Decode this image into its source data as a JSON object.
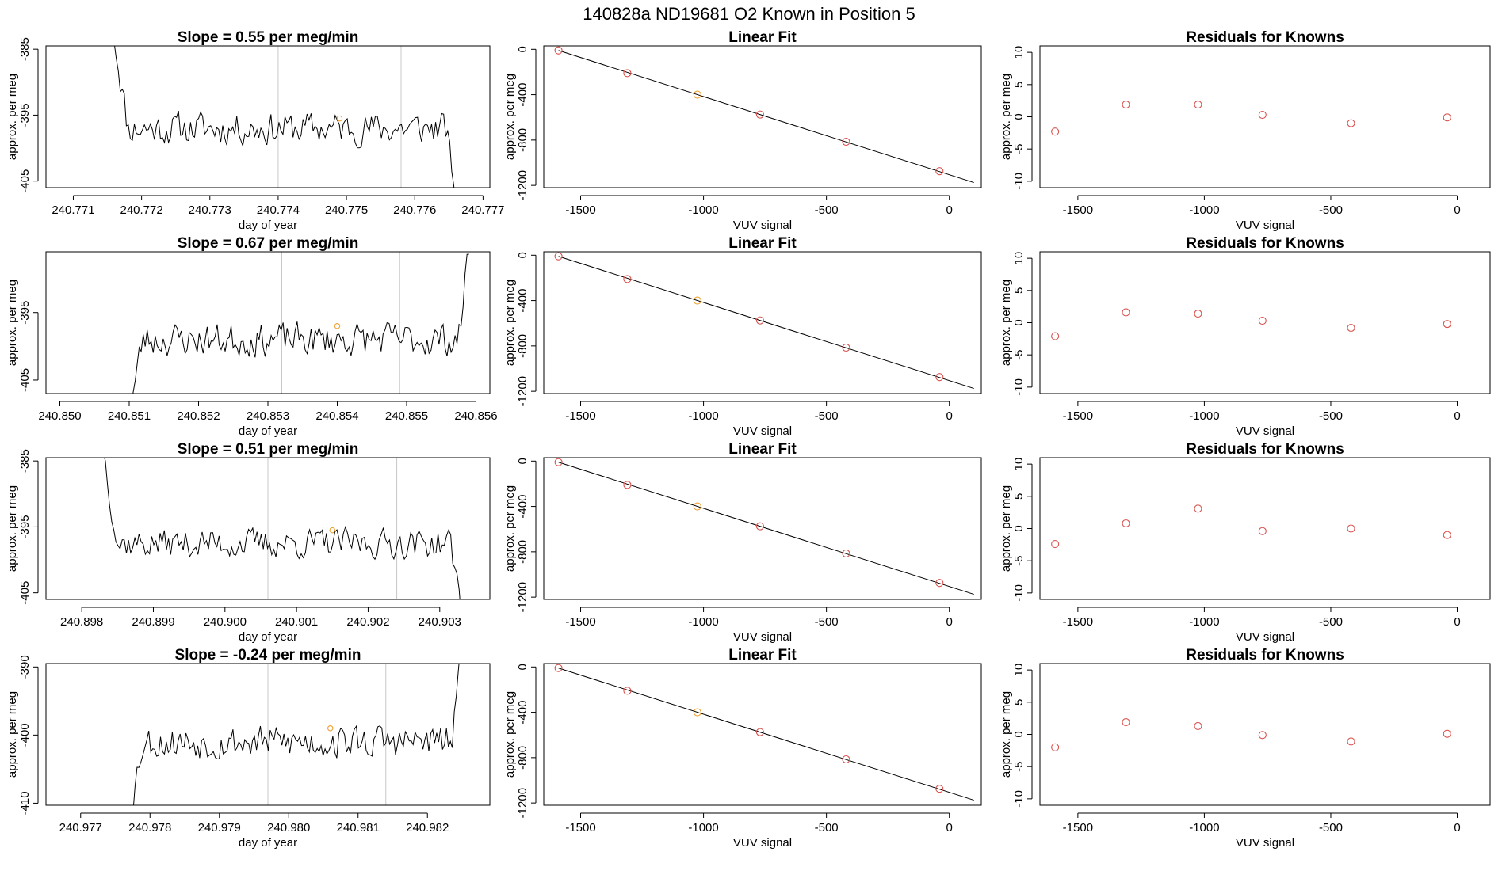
{
  "figure": {
    "title": "140828a      ND19681    O2 Known in Position  5"
  },
  "colors": {
    "known": "#d9534f",
    "sample": "#f0a030",
    "trace": "#000000",
    "marker_lines": "#c8c8c8"
  },
  "chart_data": [
    {
      "type": "line",
      "panel": "timeseries",
      "row": 1,
      "title": "Slope =  0.55  per meg/min",
      "xlabel": "day of year",
      "ylabel": "approx. per meg",
      "xlim": [
        240.7706,
        240.7771
      ],
      "ylim": [
        -406,
        -384.5
      ],
      "xticks": [
        240.771,
        240.772,
        240.773,
        240.774,
        240.775,
        240.776,
        240.777
      ],
      "xtick_labels": [
        "240.771",
        "240.772",
        "240.773",
        "240.774",
        "240.775",
        "240.776",
        "240.777"
      ],
      "yticks": [
        -385,
        -395,
        -405
      ],
      "ytick_labels": [
        "-385",
        "-395",
        "-405"
      ],
      "vlines": [
        240.774,
        240.7758
      ],
      "trace": {
        "x_start": 240.7716,
        "x_end": 240.7766,
        "baseline": -397,
        "trend_per_day": 0,
        "start_value": -383,
        "end_value": -407,
        "noise": 2.2,
        "seed": 11
      },
      "sample_point": {
        "x": 240.7749,
        "y": -395.5
      }
    },
    {
      "type": "line",
      "panel": "fit",
      "row": 1,
      "title": "Linear Fit",
      "xlabel": "VUV signal",
      "ylabel": "approx. per meg",
      "xlim": [
        -1650,
        130
      ],
      "ylim": [
        -1220,
        30
      ],
      "xticks": [
        -1500,
        -1000,
        -500,
        0
      ],
      "xtick_labels": [
        "-1500",
        "-1000",
        "-500",
        "0"
      ],
      "yticks": [
        0,
        -400,
        -800,
        -1200
      ],
      "ytick_labels": [
        "0",
        "-400",
        "-800",
        "-1200"
      ],
      "line": {
        "x": [
          -1590,
          100
        ],
        "y": [
          -10,
          -1175
        ]
      },
      "points": [
        {
          "x": -1590,
          "y": -10
        },
        {
          "x": -1310,
          "y": -210
        },
        {
          "x": -1025,
          "y": -400
        },
        {
          "x": -770,
          "y": -575
        },
        {
          "x": -420,
          "y": -815
        },
        {
          "x": -40,
          "y": -1075
        }
      ],
      "highlight_index": 2
    },
    {
      "type": "scatter",
      "panel": "residuals",
      "row": 1,
      "title": "Residuals for Knowns",
      "xlabel": "VUV signal",
      "ylabel": "approx. per meg",
      "xlim": [
        -1650,
        130
      ],
      "ylim": [
        -11,
        11
      ],
      "xticks": [
        -1500,
        -1000,
        -500,
        0
      ],
      "xtick_labels": [
        "-1500",
        "-1000",
        "-500",
        "0"
      ],
      "yticks": [
        10,
        5,
        0,
        -5,
        -10
      ],
      "ytick_labels": [
        "10",
        "5",
        "0",
        "-5",
        "-10"
      ],
      "points": [
        {
          "x": -1590,
          "y": -2.3
        },
        {
          "x": -1310,
          "y": 1.9
        },
        {
          "x": -1025,
          "y": 1.9
        },
        {
          "x": -770,
          "y": 0.3
        },
        {
          "x": -420,
          "y": -1.0
        },
        {
          "x": -40,
          "y": -0.1
        }
      ]
    },
    {
      "type": "line",
      "panel": "timeseries",
      "row": 2,
      "title": "Slope =  0.67  per meg/min",
      "xlabel": "day of year",
      "ylabel": "approx. per meg",
      "xlim": [
        240.8498,
        240.8562
      ],
      "ylim": [
        -407,
        -386
      ],
      "xticks": [
        240.85,
        240.851,
        240.852,
        240.853,
        240.854,
        240.855,
        240.856
      ],
      "xtick_labels": [
        "240.850",
        "240.851",
        "240.852",
        "240.853",
        "240.854",
        "240.855",
        "240.856"
      ],
      "yticks": [
        -395,
        -405
      ],
      "ytick_labels": [
        "-395",
        "-405"
      ],
      "vlines": [
        240.8532,
        240.8549
      ],
      "trace": {
        "x_start": 240.851,
        "x_end": 240.8559,
        "baseline": -399,
        "trend_per_day": 1600,
        "start_value": -410,
        "end_value": -385,
        "noise": 2.2,
        "seed": 23
      },
      "sample_point": {
        "x": 240.854,
        "y": -397
      }
    },
    {
      "type": "line",
      "panel": "fit",
      "row": 2,
      "title": "Linear Fit",
      "xlabel": "VUV signal",
      "ylabel": "approx. per meg",
      "xlim": [
        -1650,
        130
      ],
      "ylim": [
        -1220,
        30
      ],
      "xticks": [
        -1500,
        -1000,
        -500,
        0
      ],
      "xtick_labels": [
        "-1500",
        "-1000",
        "-500",
        "0"
      ],
      "yticks": [
        0,
        -400,
        -800,
        -1200
      ],
      "ytick_labels": [
        "0",
        "-400",
        "-800",
        "-1200"
      ],
      "line": {
        "x": [
          -1590,
          100
        ],
        "y": [
          -10,
          -1175
        ]
      },
      "points": [
        {
          "x": -1590,
          "y": -10
        },
        {
          "x": -1310,
          "y": -210
        },
        {
          "x": -1025,
          "y": -400
        },
        {
          "x": -770,
          "y": -575
        },
        {
          "x": -420,
          "y": -815
        },
        {
          "x": -40,
          "y": -1075
        }
      ],
      "highlight_index": 2
    },
    {
      "type": "scatter",
      "panel": "residuals",
      "row": 2,
      "title": "Residuals for Knowns",
      "xlabel": "VUV signal",
      "ylabel": "approx. per meg",
      "xlim": [
        -1650,
        130
      ],
      "ylim": [
        -11,
        11
      ],
      "xticks": [
        -1500,
        -1000,
        -500,
        0
      ],
      "xtick_labels": [
        "-1500",
        "-1000",
        "-500",
        "0"
      ],
      "yticks": [
        10,
        5,
        0,
        -5,
        -10
      ],
      "ytick_labels": [
        "10",
        "5",
        "0",
        "-5",
        "-10"
      ],
      "points": [
        {
          "x": -1590,
          "y": -2.1
        },
        {
          "x": -1310,
          "y": 1.6
        },
        {
          "x": -1025,
          "y": 1.4
        },
        {
          "x": -770,
          "y": 0.3
        },
        {
          "x": -420,
          "y": -0.8
        },
        {
          "x": -40,
          "y": -0.2
        }
      ]
    },
    {
      "type": "line",
      "panel": "timeseries",
      "row": 3,
      "title": "Slope =  0.51  per meg/min",
      "xlabel": "day of year",
      "ylabel": "approx. per meg",
      "xlim": [
        240.8975,
        240.9037
      ],
      "ylim": [
        -406,
        -384.5
      ],
      "xticks": [
        240.898,
        240.899,
        240.9,
        240.901,
        240.902,
        240.903
      ],
      "xtick_labels": [
        "240.898",
        "240.899",
        "240.900",
        "240.901",
        "240.902",
        "240.903"
      ],
      "yticks": [
        -385,
        -395,
        -405
      ],
      "ytick_labels": [
        "-385",
        "-395",
        "-405"
      ],
      "vlines": [
        240.9006,
        240.9024
      ],
      "trace": {
        "x_start": 240.8983,
        "x_end": 240.9033,
        "baseline": -397.5,
        "trend_per_day": 0,
        "start_value": -383,
        "end_value": -407,
        "noise": 2.0,
        "seed": 37
      },
      "sample_point": {
        "x": 240.9015,
        "y": -395.5
      }
    },
    {
      "type": "line",
      "panel": "fit",
      "row": 3,
      "title": "Linear Fit",
      "xlabel": "VUV signal",
      "ylabel": "approx. per meg",
      "xlim": [
        -1650,
        130
      ],
      "ylim": [
        -1220,
        30
      ],
      "xticks": [
        -1500,
        -1000,
        -500,
        0
      ],
      "xtick_labels": [
        "-1500",
        "-1000",
        "-500",
        "0"
      ],
      "yticks": [
        0,
        -400,
        -800,
        -1200
      ],
      "ytick_labels": [
        "0",
        "-400",
        "-800",
        "-1200"
      ],
      "line": {
        "x": [
          -1590,
          100
        ],
        "y": [
          -10,
          -1175
        ]
      },
      "points": [
        {
          "x": -1590,
          "y": -10
        },
        {
          "x": -1310,
          "y": -210
        },
        {
          "x": -1025,
          "y": -400
        },
        {
          "x": -770,
          "y": -575
        },
        {
          "x": -420,
          "y": -815
        },
        {
          "x": -40,
          "y": -1075
        }
      ],
      "highlight_index": 2
    },
    {
      "type": "scatter",
      "panel": "residuals",
      "row": 3,
      "title": "Residuals for Knowns",
      "xlabel": "VUV signal",
      "ylabel": "approx. per meg",
      "xlim": [
        -1650,
        130
      ],
      "ylim": [
        -11,
        11
      ],
      "xticks": [
        -1500,
        -1000,
        -500,
        0
      ],
      "xtick_labels": [
        "-1500",
        "-1000",
        "-500",
        "0"
      ],
      "yticks": [
        10,
        5,
        0,
        -5,
        -10
      ],
      "ytick_labels": [
        "10",
        "5",
        "0",
        "-5",
        "-10"
      ],
      "points": [
        {
          "x": -1590,
          "y": -2.4
        },
        {
          "x": -1310,
          "y": 0.8
        },
        {
          "x": -1025,
          "y": 3.1
        },
        {
          "x": -770,
          "y": -0.4
        },
        {
          "x": -420,
          "y": 0.0
        },
        {
          "x": -40,
          "y": -1.0
        }
      ]
    },
    {
      "type": "line",
      "panel": "timeseries",
      "row": 4,
      "title": "Slope =  -0.24  per meg/min",
      "xlabel": "day of year",
      "ylabel": "approx. per meg",
      "xlim": [
        240.9765,
        240.9829
      ],
      "ylim": [
        -410.3,
        -389.5
      ],
      "xticks": [
        240.977,
        240.978,
        240.979,
        240.98,
        240.981,
        240.982
      ],
      "xtick_labels": [
        "240.977",
        "240.978",
        "240.979",
        "240.980",
        "240.981",
        "240.982"
      ],
      "yticks": [
        -390,
        -400,
        -410
      ],
      "ytick_labels": [
        "-390",
        "-400",
        "-410"
      ],
      "vlines": [
        240.9797,
        240.9814
      ],
      "trace": {
        "x_start": 240.9777,
        "x_end": 240.9825,
        "baseline": -401,
        "trend_per_day": 600,
        "start_value": -412,
        "end_value": -388,
        "noise": 2.2,
        "seed": 53
      },
      "sample_point": {
        "x": 240.9806,
        "y": -399
      }
    },
    {
      "type": "line",
      "panel": "fit",
      "row": 4,
      "title": "Linear Fit",
      "xlabel": "VUV signal",
      "ylabel": "approx. per meg",
      "xlim": [
        -1650,
        130
      ],
      "ylim": [
        -1220,
        30
      ],
      "xticks": [
        -1500,
        -1000,
        -500,
        0
      ],
      "xtick_labels": [
        "-1500",
        "-1000",
        "-500",
        "0"
      ],
      "yticks": [
        0,
        -400,
        -800,
        -1200
      ],
      "ytick_labels": [
        "0",
        "-400",
        "-800",
        "-1200"
      ],
      "line": {
        "x": [
          -1590,
          100
        ],
        "y": [
          -10,
          -1175
        ]
      },
      "points": [
        {
          "x": -1590,
          "y": -10
        },
        {
          "x": -1310,
          "y": -210
        },
        {
          "x": -1025,
          "y": -400
        },
        {
          "x": -770,
          "y": -575
        },
        {
          "x": -420,
          "y": -815
        },
        {
          "x": -40,
          "y": -1075
        }
      ],
      "highlight_index": 2
    },
    {
      "type": "scatter",
      "panel": "residuals",
      "row": 4,
      "title": "Residuals for Knowns",
      "xlabel": "VUV signal",
      "ylabel": "approx. per meg",
      "xlim": [
        -1650,
        130
      ],
      "ylim": [
        -11,
        11
      ],
      "xticks": [
        -1500,
        -1000,
        -500,
        0
      ],
      "xtick_labels": [
        "-1500",
        "-1000",
        "-500",
        "0"
      ],
      "yticks": [
        10,
        5,
        0,
        -5,
        -10
      ],
      "ytick_labels": [
        "10",
        "5",
        "0",
        "-5",
        "-10"
      ],
      "points": [
        {
          "x": -1590,
          "y": -2.0
        },
        {
          "x": -1310,
          "y": 1.9
        },
        {
          "x": -1025,
          "y": 1.3
        },
        {
          "x": -770,
          "y": -0.1
        },
        {
          "x": -420,
          "y": -1.1
        },
        {
          "x": -40,
          "y": 0.1
        }
      ]
    }
  ]
}
